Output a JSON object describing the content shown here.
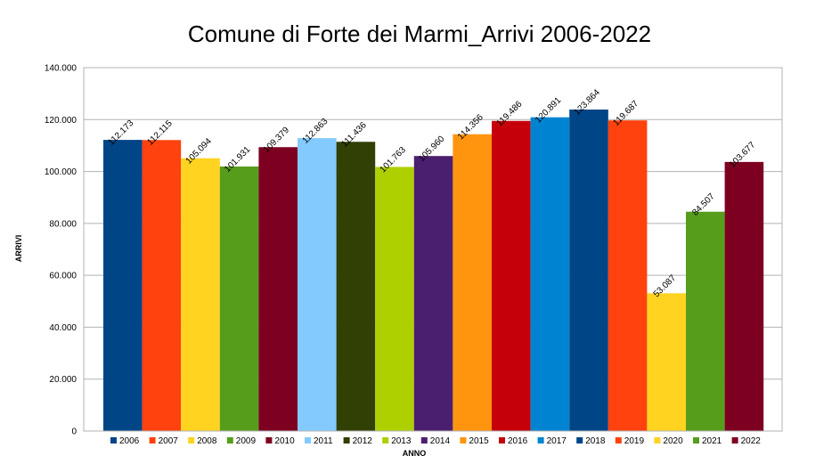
{
  "chart_data": {
    "type": "bar",
    "title": "Comune di Forte dei Marmi_Arrivi 2006-2022",
    "xlabel": "ANNO",
    "ylabel": "ARRIVI",
    "ylim": [
      0,
      140000
    ],
    "y_ticks": [
      0,
      20000,
      40000,
      60000,
      80000,
      100000,
      120000,
      140000
    ],
    "y_tick_labels": [
      "0",
      "20.000",
      "40.000",
      "60.000",
      "80.000",
      "100.000",
      "120.000",
      "140.000"
    ],
    "grid": true,
    "legend_position": "bottom",
    "categories": [
      "2006",
      "2007",
      "2008",
      "2009",
      "2010",
      "2011",
      "2012",
      "2013",
      "2014",
      "2015",
      "2016",
      "2017",
      "2018",
      "2019",
      "2020",
      "2021",
      "2022"
    ],
    "values": [
      112173,
      112115,
      105094,
      101931,
      109379,
      112863,
      111436,
      101763,
      105960,
      114356,
      119486,
      120891,
      123864,
      119687,
      53087,
      84507,
      103677
    ],
    "value_labels": [
      "112.173",
      "112.115",
      "105.094",
      "101.931",
      "109.379",
      "112.863",
      "111.436",
      "101.763",
      "105.960",
      "114.356",
      "119.486",
      "120.891",
      "123.864",
      "119.687",
      "53.087",
      "84.507",
      "103.677"
    ],
    "colors": [
      "#004586",
      "#ff420e",
      "#ffd320",
      "#579d1c",
      "#7e0021",
      "#83caff",
      "#314004",
      "#aecf00",
      "#4b1f6f",
      "#ff950e",
      "#c5000b",
      "#0084d1",
      "#004586",
      "#ff420e",
      "#ffd320",
      "#579d1c",
      "#7e0021"
    ]
  }
}
